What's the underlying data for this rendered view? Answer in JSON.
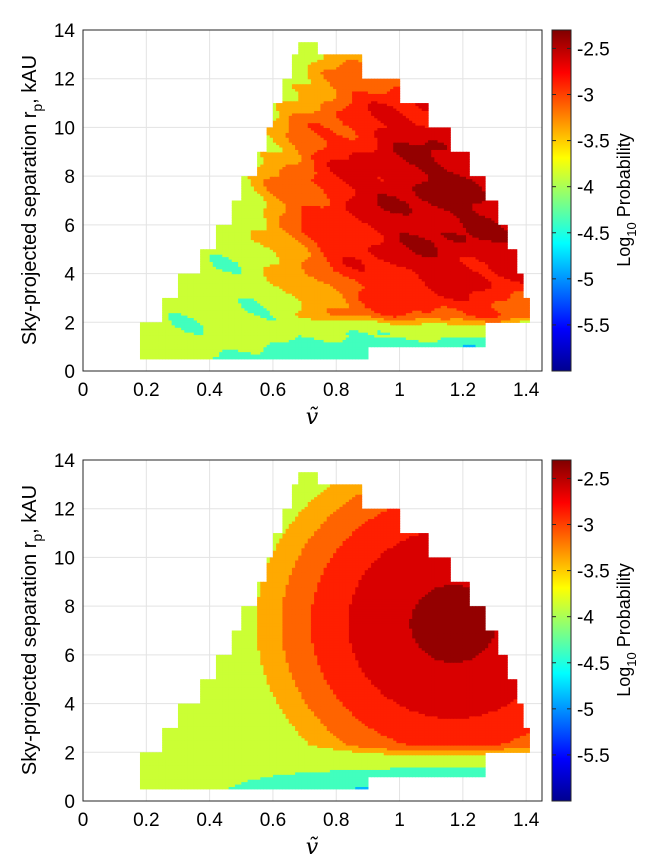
{
  "chart_data": [
    {
      "type": "heatmap",
      "subtype": "filled-contour",
      "xlabel": "ṽ",
      "ylabel": "Sky-projected separation r_p, kAU",
      "ylabel_main": "Sky-projected separation r",
      "ylabel_sub": "p",
      "ylabel_unit": ", kAU",
      "xlim": [
        0,
        1.45
      ],
      "ylim": [
        0,
        14
      ],
      "xticks": [
        "0",
        "0.2",
        "0.4",
        "0.6",
        "0.8",
        "1",
        "1.2",
        "1.4"
      ],
      "yticks": [
        "0",
        "2",
        "4",
        "6",
        "8",
        "10",
        "12",
        "14"
      ],
      "grid": true,
      "colorbar": {
        "label_main": "Log",
        "label_sub": "10",
        "label_rest": " Probability",
        "range": [
          -6.0,
          -2.3
        ],
        "ticks": [
          "-2.5",
          "-3",
          "-3.5",
          "-4",
          "-4.5",
          "-5",
          "-5.5"
        ],
        "colormap": "jet"
      },
      "support_region": {
        "description": "triangular populated region",
        "left_edge": [
          [
            0.18,
            0.5
          ],
          [
            0.18,
            1.5
          ],
          [
            0.25,
            1.5
          ],
          [
            0.25,
            2.5
          ],
          [
            0.3,
            2.5
          ],
          [
            0.3,
            3.5
          ],
          [
            0.37,
            3.5
          ],
          [
            0.37,
            4.5
          ],
          [
            0.42,
            4.5
          ],
          [
            0.42,
            5.5
          ],
          [
            0.47,
            5.5
          ],
          [
            0.47,
            6.5
          ],
          [
            0.5,
            6.5
          ],
          [
            0.5,
            7.5
          ],
          [
            0.55,
            7.5
          ],
          [
            0.55,
            8.5
          ],
          [
            0.58,
            8.5
          ],
          [
            0.58,
            9.5
          ],
          [
            0.6,
            9.5
          ],
          [
            0.6,
            10.5
          ],
          [
            0.63,
            10.5
          ],
          [
            0.63,
            11.5
          ],
          [
            0.66,
            11.5
          ],
          [
            0.66,
            12.5
          ],
          [
            0.68,
            12.5
          ],
          [
            0.68,
            13.5
          ],
          [
            0.74,
            13.5
          ]
        ],
        "right_edge": [
          [
            0.74,
            13.5
          ],
          [
            0.74,
            12.5
          ],
          [
            0.88,
            12.5
          ],
          [
            0.88,
            11.5
          ],
          [
            1.0,
            11.5
          ],
          [
            1.0,
            10.5
          ],
          [
            1.09,
            10.5
          ],
          [
            1.09,
            9.5
          ],
          [
            1.16,
            9.5
          ],
          [
            1.16,
            8.5
          ],
          [
            1.22,
            8.5
          ],
          [
            1.22,
            7.5
          ],
          [
            1.27,
            7.5
          ],
          [
            1.27,
            6.5
          ],
          [
            1.31,
            6.5
          ],
          [
            1.31,
            5.5
          ],
          [
            1.34,
            5.5
          ],
          [
            1.34,
            4.5
          ],
          [
            1.37,
            4.5
          ],
          [
            1.37,
            3.5
          ],
          [
            1.39,
            3.5
          ],
          [
            1.39,
            2.5
          ],
          [
            1.41,
            2.5
          ],
          [
            1.27,
            2.5
          ],
          [
            1.27,
            1.5
          ],
          [
            0.9,
            1.5
          ],
          [
            0.9,
            0.5
          ],
          [
            0.18,
            0.5
          ]
        ]
      },
      "contour_levels": [
        -5.5,
        -5.0,
        -4.5,
        -4.0,
        -3.5,
        -3.25,
        -3.0,
        -2.75,
        -2.5
      ],
      "peak": {
        "x": 1.17,
        "y": 7.3,
        "value": -2.5
      }
    },
    {
      "type": "heatmap",
      "subtype": "filled-contour",
      "xlabel": "ṽ",
      "ylabel": "Sky-projected separation r_p, kAU",
      "ylabel_main": "Sky-projected separation r",
      "ylabel_sub": "p",
      "ylabel_unit": ", kAU",
      "xlim": [
        0,
        1.45
      ],
      "ylim": [
        0,
        14
      ],
      "xticks": [
        "0",
        "0.2",
        "0.4",
        "0.6",
        "0.8",
        "1",
        "1.2",
        "1.4"
      ],
      "yticks": [
        "0",
        "2",
        "4",
        "6",
        "8",
        "10",
        "12",
        "14"
      ],
      "grid": true,
      "colorbar": {
        "label_main": "Log",
        "label_sub": "10",
        "label_rest": " Probability",
        "range": [
          -6.0,
          -2.3
        ],
        "ticks": [
          "-2.5",
          "-3",
          "-3.5",
          "-4",
          "-4.5",
          "-5",
          "-5.5"
        ],
        "colormap": "jet"
      },
      "contour_levels": [
        -5.5,
        -5.0,
        -4.5,
        -4.0,
        -3.5,
        -3.25,
        -3.0,
        -2.75,
        -2.5
      ],
      "peak": {
        "x": 1.15,
        "y": 7.2,
        "value": -2.5
      },
      "smoothed": true
    }
  ]
}
